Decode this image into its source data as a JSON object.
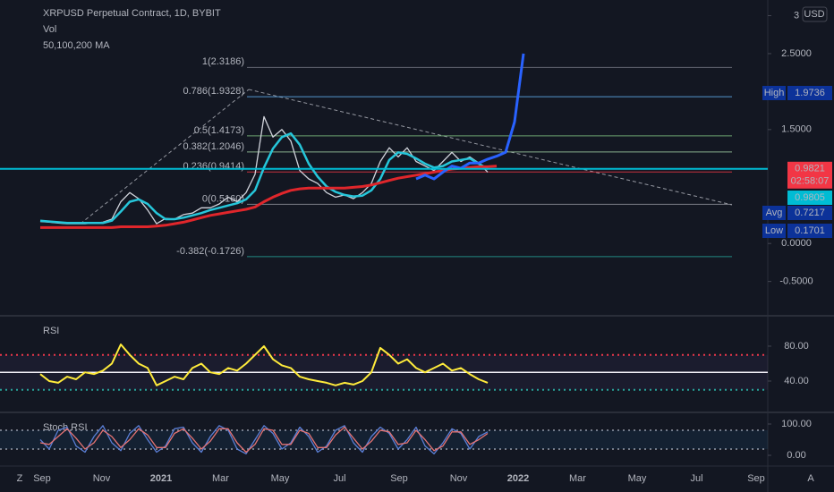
{
  "ui": {
    "left_icon": "Z",
    "right_icon": "A",
    "currency": "USD"
  },
  "chart_data": [
    {
      "type": "line",
      "title": "XRPUSD Perpetual Contract, 1D, BYBIT",
      "indicators": [
        "Vol",
        "50,100,200 MA"
      ],
      "time_axis": [
        "Sep",
        "Nov",
        "2021",
        "Mar",
        "May",
        "Jul",
        "Sep",
        "Nov",
        "2022",
        "Mar",
        "May",
        "Jul",
        "Sep"
      ],
      "ylim": [
        -0.94,
        3.147
      ],
      "yticks": [
        3,
        {
          "value": 2.5,
          "label": "2.5000"
        },
        {
          "value": 1.5,
          "label": "1.5000"
        },
        {
          "value": 0,
          "label": "0.0000"
        },
        {
          "value": -0.5,
          "label": "-0.5000"
        }
      ],
      "fib_levels": [
        {
          "label": "1(2.3186)",
          "value": 2.3186,
          "color": "#787b86"
        },
        {
          "label": "0.786(1.9328)",
          "value": 1.9328,
          "color": "#64b5f6"
        },
        {
          "label": "0.5(1.4173)",
          "value": 1.4173,
          "color": "#81c784"
        },
        {
          "label": "0.382(1.2046)",
          "value": 1.2046,
          "color": "#a5d6a7"
        },
        {
          "label": "0.236(0.9414)",
          "value": 0.9414,
          "color": "#f23645"
        },
        {
          "label": "0(0.5160)",
          "value": 0.516,
          "color": "#9598a1"
        },
        {
          "label": "-0.382(-0.1726)",
          "value": -0.1726,
          "color": "#26a69a"
        }
      ],
      "last_price": {
        "value": 0.9821,
        "countdown": "02:58:07",
        "color": "#00bcd4"
      },
      "price_labels": [
        {
          "label": "High",
          "value": 1.9736
        },
        {
          "value": 0.9805
        },
        {
          "label": "Avg",
          "value": 0.7217
        },
        {
          "label": "Low",
          "value": 0.1701
        }
      ],
      "series": [
        {
          "color": "#d1d4dc",
          "width": 1.3,
          "values": [
            0.29,
            0.28,
            0.27,
            0.26,
            0.26,
            0.26,
            0.27,
            0.28,
            0.32,
            0.55,
            0.67,
            0.59,
            0.44,
            0.26,
            0.33,
            0.32,
            0.38,
            0.4,
            0.47,
            0.47,
            0.52,
            0.61,
            0.55,
            0.67,
            0.91,
            1.67,
            1.4,
            1.5,
            1.35,
            0.96,
            0.85,
            0.79,
            0.67,
            0.61,
            0.64,
            0.59,
            0.67,
            0.79,
            1.08,
            1.26,
            1.14,
            1.26,
            1.08,
            1.02,
            0.96,
            1.08,
            1.2,
            1.08,
            1.14,
            1.06,
            0.94,
            null,
            null,
            null,
            null
          ]
        },
        {
          "color": "#26c6da",
          "width": 2.5,
          "values": [
            0.3,
            0.29,
            0.28,
            0.27,
            0.27,
            0.27,
            0.27,
            0.27,
            0.3,
            0.42,
            0.55,
            0.58,
            0.52,
            0.4,
            0.32,
            0.32,
            0.34,
            0.37,
            0.4,
            0.44,
            0.47,
            0.5,
            0.53,
            0.58,
            0.7,
            1.0,
            1.25,
            1.4,
            1.45,
            1.3,
            1.05,
            0.88,
            0.75,
            0.68,
            0.64,
            0.62,
            0.63,
            0.7,
            0.85,
            1.1,
            1.2,
            1.18,
            1.12,
            1.05,
            1.0,
            1.02,
            1.08,
            1.1,
            1.12,
            1.05,
            0.98,
            null,
            null,
            null,
            null
          ]
        },
        {
          "color": "#e0262b",
          "width": 3,
          "values": [
            0.21,
            0.21,
            0.21,
            0.21,
            0.21,
            0.21,
            0.21,
            0.21,
            0.21,
            0.22,
            0.22,
            0.22,
            0.22,
            0.23,
            0.24,
            0.26,
            0.28,
            0.31,
            0.34,
            0.37,
            0.39,
            0.41,
            0.43,
            0.45,
            0.48,
            0.55,
            0.61,
            0.66,
            0.7,
            0.72,
            0.73,
            0.73,
            0.73,
            0.73,
            0.73,
            0.74,
            0.75,
            0.77,
            0.8,
            0.83,
            0.86,
            0.88,
            0.9,
            0.92,
            0.94,
            0.96,
            0.98,
            0.99,
            1.0,
            1.01,
            1.01,
            1.02,
            null,
            null,
            null
          ]
        },
        {
          "color": "#2962ff",
          "width": 3,
          "values": [
            null,
            null,
            null,
            null,
            null,
            null,
            null,
            null,
            null,
            null,
            null,
            null,
            null,
            null,
            null,
            null,
            null,
            null,
            null,
            null,
            null,
            null,
            null,
            null,
            null,
            null,
            null,
            null,
            null,
            null,
            null,
            null,
            null,
            null,
            null,
            null,
            null,
            null,
            null,
            null,
            null,
            null,
            0.85,
            0.9,
            0.85,
            0.94,
            1.02,
            0.99,
            1.06,
            1.06,
            1.11,
            1.15,
            1.2,
            1.6,
            2.5
          ]
        }
      ]
    },
    {
      "type": "line",
      "title": "RSI",
      "ylim": [
        5.1,
        112.8
      ],
      "yticks": [
        {
          "value": 80,
          "label": "80.00"
        },
        {
          "value": 40,
          "label": "40.00"
        }
      ],
      "levels": [
        {
          "value": 70,
          "color": "#f23645",
          "dash": true
        },
        {
          "value": 50,
          "color": "#ffffff",
          "dash": false
        },
        {
          "value": 30,
          "color": "#26a69a",
          "dash": true
        }
      ],
      "series": [
        {
          "color": "#ffeb3b",
          "width": 2,
          "values": [
            48,
            40,
            38,
            45,
            42,
            50,
            48,
            52,
            60,
            82,
            70,
            60,
            55,
            35,
            40,
            45,
            42,
            55,
            60,
            50,
            48,
            55,
            52,
            60,
            70,
            80,
            65,
            58,
            55,
            45,
            42,
            40,
            38,
            35,
            38,
            36,
            40,
            50,
            78,
            70,
            60,
            65,
            55,
            50,
            55,
            60,
            52,
            55,
            48,
            42,
            38,
            null,
            null,
            null,
            null
          ]
        }
      ]
    },
    {
      "type": "line",
      "title": "Stoch RSI",
      "ylim": [
        -31.4,
        134.3
      ],
      "yticks": [
        {
          "value": 100,
          "label": "100.00"
        },
        {
          "value": 0,
          "label": "0.00"
        }
      ],
      "levels": [
        {
          "value": 80,
          "color": "#787b86",
          "dash": true
        },
        {
          "value": 20,
          "color": "#787b86",
          "dash": true
        }
      ],
      "series": [
        {
          "color": "#5b7fd6",
          "width": 1.3,
          "values": [
            50,
            20,
            80,
            90,
            30,
            10,
            60,
            95,
            40,
            15,
            70,
            95,
            50,
            10,
            30,
            85,
            90,
            40,
            10,
            60,
            95,
            80,
            20,
            5,
            50,
            95,
            70,
            20,
            40,
            90,
            60,
            10,
            30,
            80,
            95,
            40,
            10,
            60,
            90,
            70,
            20,
            50,
            90,
            30,
            5,
            40,
            85,
            70,
            20,
            60,
            75,
            null,
            null,
            null,
            null
          ]
        },
        {
          "color": "#e57373",
          "width": 1.3,
          "values": [
            40,
            35,
            60,
            85,
            55,
            20,
            40,
            80,
            60,
            25,
            50,
            85,
            65,
            25,
            25,
            70,
            85,
            55,
            20,
            45,
            85,
            85,
            40,
            10,
            35,
            85,
            80,
            35,
            35,
            80,
            70,
            25,
            25,
            65,
            90,
            55,
            20,
            45,
            80,
            75,
            35,
            40,
            80,
            50,
            15,
            30,
            75,
            75,
            35,
            50,
            70,
            null,
            null,
            null,
            null
          ]
        }
      ]
    }
  ]
}
